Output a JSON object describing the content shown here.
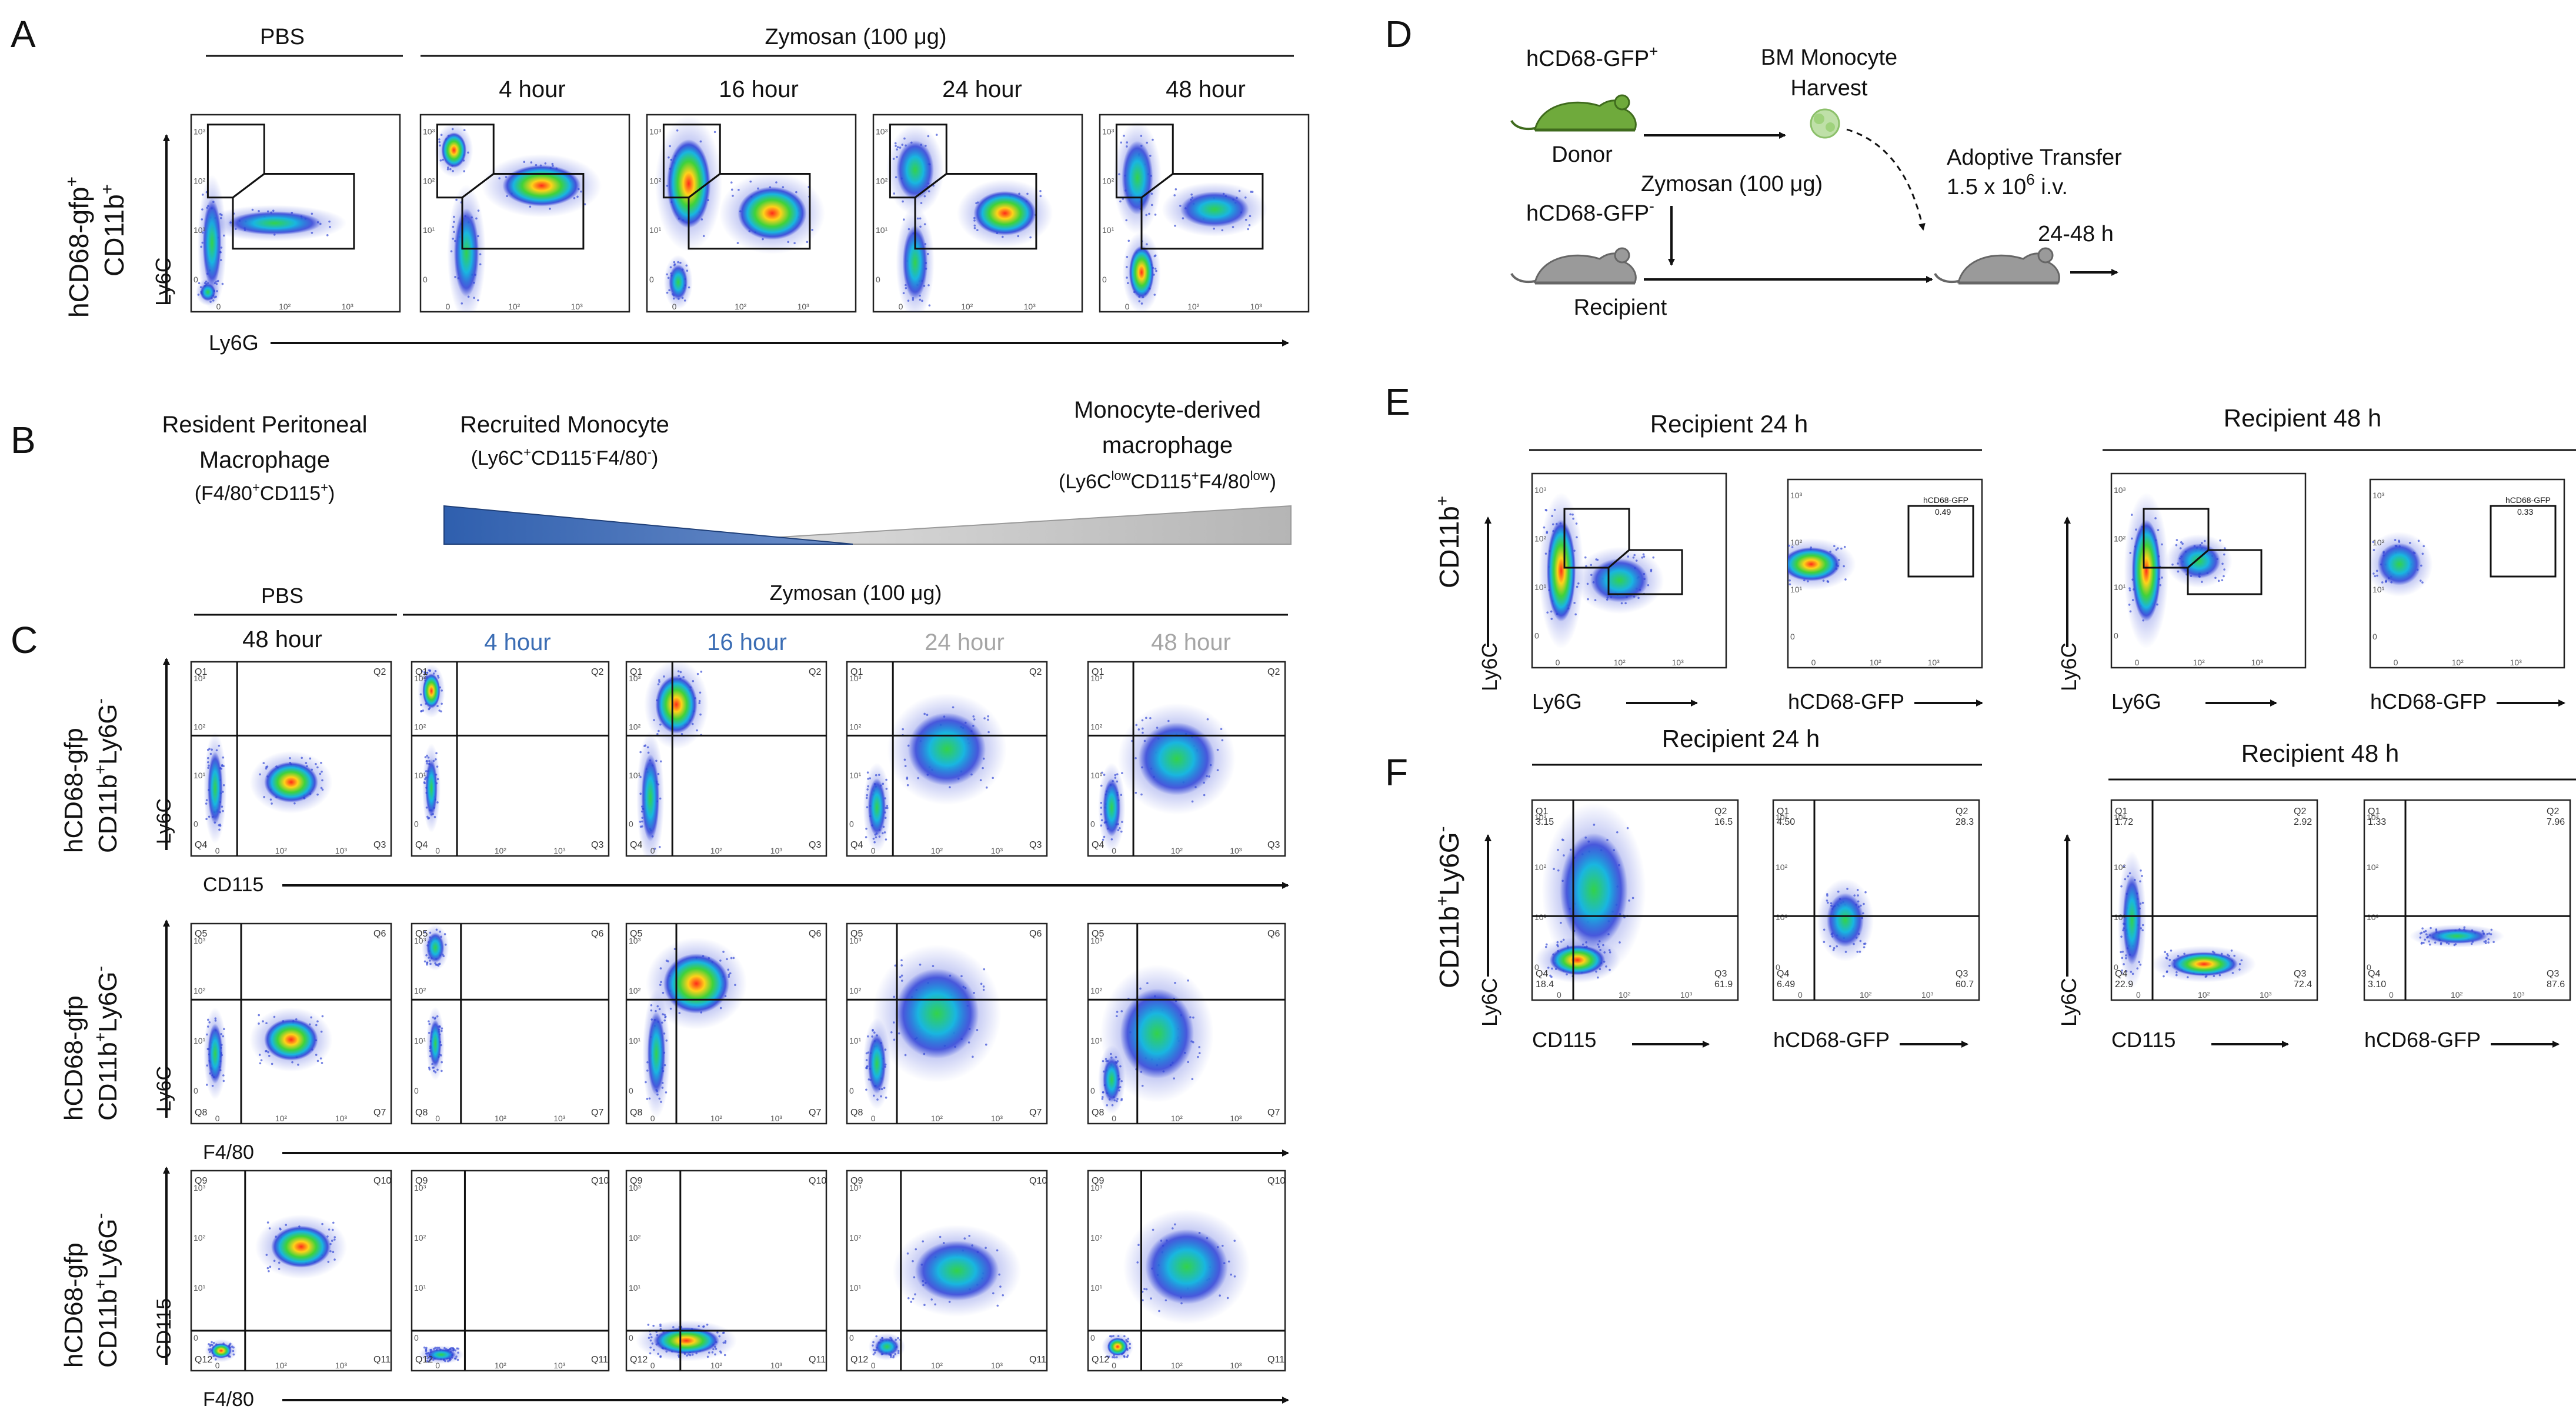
{
  "panels": {
    "A": {
      "letter": "A",
      "group_left": "PBS",
      "group_right": "Zymosan (100 μg)",
      "timepoints": [
        "4 hour",
        "16 hour",
        "24 hour",
        "48 hour"
      ],
      "row_label_line1": "hCD68-gfp",
      "row_label_sup": "+",
      "row_label_line2": "CD11b",
      "row_label_line2_sup": "+",
      "y_axis": "Ly6C",
      "x_axis": "Ly6G"
    },
    "B": {
      "letter": "B",
      "label1_line1": "Resident Peritoneal",
      "label1_line2": "Macrophage",
      "label1_line3": "(F4/80",
      "label1_line3_sup": "+",
      "label1_line3_mid": "CD115",
      "label1_line3_end": ")",
      "label2_line1": "Recruited Monocyte",
      "label2_line2a": "(Ly6C",
      "label2_sup1": "+",
      "label2_line2b": "CD115",
      "label2_sup2": "-",
      "label2_line2c": "F4/80",
      "label2_sup3": "-",
      "label2_line2d": ")",
      "label3_line1": "Monocyte-derived",
      "label3_line2": "macrophage",
      "label3_line3a": "(Ly6C",
      "label3_sup1": "low",
      "label3_line3b": "CD115",
      "label3_sup2": "+",
      "label3_line3c": "F4/80",
      "label3_sup3": "low",
      "label3_line3d": ")"
    },
    "C": {
      "letter": "C",
      "group_left": "PBS",
      "group_right": "Zymosan (100 μg)",
      "timepoints": [
        "48 hour",
        "4 hour",
        "16 hour",
        "24 hour",
        "48 hour"
      ],
      "row_label_line1": "hCD68-gfp",
      "row_label_line2": "CD11b",
      "row1": {
        "y_axis": "Ly6C",
        "x_axis": "CD115",
        "quadrants": [
          "Q1",
          "Q2",
          "Q3",
          "Q4"
        ]
      },
      "row2": {
        "y_axis": "Ly6C",
        "x_axis": "F4/80",
        "quadrants": [
          "Q5",
          "Q6",
          "Q7",
          "Q8"
        ]
      },
      "row3": {
        "y_axis": "CD115",
        "x_axis": "F4/80",
        "quadrants": [
          "Q9",
          "Q10",
          "Q11",
          "Q12"
        ]
      }
    },
    "D": {
      "letter": "D",
      "donor_label": "hCD68-GFP",
      "donor_sup": "+",
      "donor": "Donor",
      "harvest_line1": "BM Monocyte",
      "harvest_line2": "Harvest",
      "zymosan": "Zymosan (100 μg)",
      "recipient_label": "hCD68-GFP",
      "recipient_sup": "-",
      "recipient": "Recipient",
      "transfer_line1": "Adoptive Transfer",
      "transfer_line2a": "1.5 x 10",
      "transfer_sup": "6",
      "transfer_line2b": " i.v.",
      "time": "24-48 h"
    },
    "E": {
      "letter": "E",
      "row_label": "CD11b",
      "row_label_sup": "+",
      "left_title": "Recipient 24 h",
      "right_title": "Recipient 48 h",
      "y_axis": "Ly6C",
      "x_axis": "Ly6G",
      "gfp_axis": "hCD68-GFP",
      "gate_label": "hCD68-GFP",
      "gfp_24": "0.49",
      "gfp_48": "0.33"
    },
    "F": {
      "letter": "F",
      "row_label": "CD11b",
      "left_title": "Recipient 24 h",
      "right_title": "Recipient 48 h",
      "y_axis": "Ly6C",
      "x_axis": "CD115",
      "gfp_axis": "hCD68-GFP",
      "q24_cd115": {
        "Q1": "3.15",
        "Q2": "16.5",
        "Q3": "61.9",
        "Q4": "18.4"
      },
      "q24_gfp": {
        "Q1": "4.50",
        "Q2": "28.3",
        "Q3": "60.7",
        "Q4": "6.49"
      },
      "q48_cd115": {
        "Q1": "1.72",
        "Q2": "2.92",
        "Q3": "72.4",
        "Q4": "22.9"
      },
      "q48_gfp": {
        "Q1": "1.33",
        "Q2": "7.96",
        "Q3": "87.6",
        "Q4": "3.10"
      }
    }
  },
  "colors": {
    "blue_grad": "#2f5fae",
    "grey_grad": "#b9b9b9",
    "mouse_green": "#6faa3c",
    "mouse_grey": "#9a9a9a",
    "timepoint_blue": "#3b6db4",
    "timepoint_grey": "#a5a5a5"
  }
}
